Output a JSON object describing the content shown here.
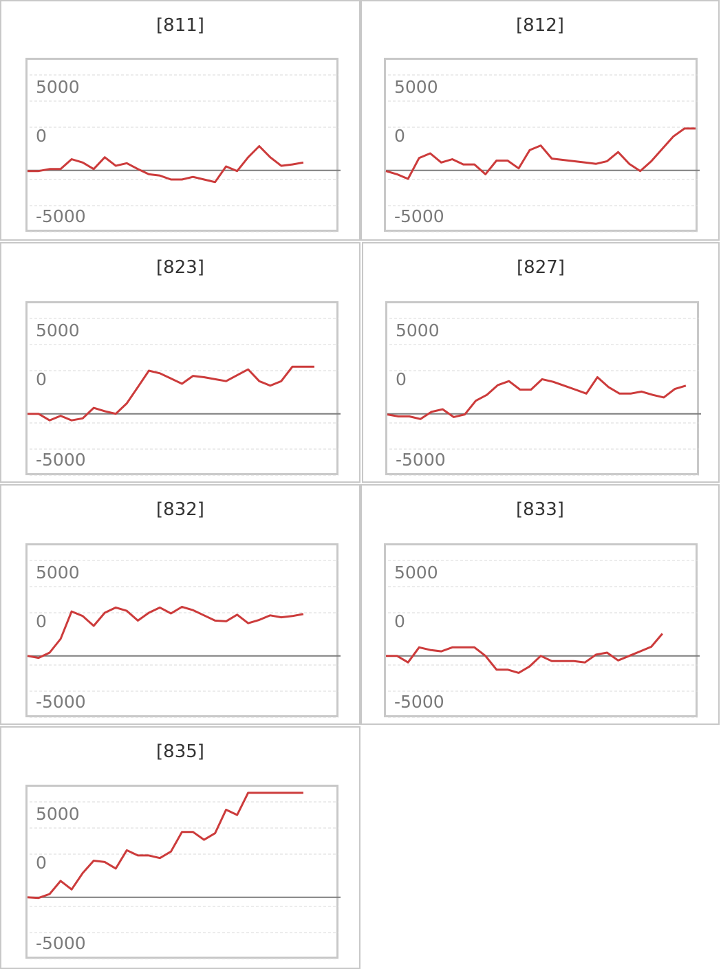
{
  "colors": {
    "line": "#cc3b3b",
    "zero_line": "#7d7d7d",
    "grid": "#d9d9d9",
    "frame": "#c8c8c8"
  },
  "chart_data": [
    {
      "type": "line",
      "title": "[811]",
      "ylim": [
        -6000,
        7000
      ],
      "y_ticks": [
        5000,
        0,
        -5000
      ],
      "grid": true,
      "series": [
        {
          "values": [
            -50,
            -50,
            100,
            100,
            850,
            600,
            100,
            1000,
            350,
            550,
            100,
            -300,
            -400,
            -700,
            -700,
            -500,
            -700,
            -900,
            300,
            -50,
            1000,
            1850,
            1000,
            350,
            450,
            600
          ]
        }
      ]
    },
    {
      "type": "line",
      "title": "[812]",
      "ylim": [
        -6000,
        7000
      ],
      "y_ticks": [
        5000,
        0,
        -5000
      ],
      "grid": true,
      "series": [
        {
          "values": [
            -50,
            -300,
            -650,
            950,
            1300,
            600,
            850,
            450,
            450,
            -300,
            750,
            750,
            150,
            1550,
            1900,
            900,
            800,
            700,
            600,
            500,
            700,
            1400,
            500,
            -50,
            700,
            1650,
            2600,
            3200,
            3200
          ]
        }
      ]
    },
    {
      "type": "line",
      "title": "[823]",
      "ylim": [
        -6000,
        7000
      ],
      "y_ticks": [
        5000,
        0,
        -5000
      ],
      "grid": true,
      "series": [
        {
          "values": [
            0,
            0,
            -500,
            -150,
            -500,
            -350,
            450,
            200,
            0,
            800,
            2050,
            3300,
            3100,
            2700,
            2300,
            2900,
            2800,
            2650,
            2500,
            2950,
            3400,
            2500,
            2150,
            2500,
            3600,
            3600,
            3600
          ]
        }
      ]
    },
    {
      "type": "line",
      "title": "[827]",
      "ylim": [
        -6000,
        7000
      ],
      "y_ticks": [
        5000,
        0,
        -5000
      ],
      "grid": true,
      "series": [
        {
          "values": [
            -50,
            -200,
            -200,
            -400,
            150,
            350,
            -250,
            -50,
            1000,
            1450,
            2200,
            2500,
            1850,
            1850,
            2650,
            2450,
            2150,
            1850,
            1550,
            2800,
            2050,
            1550,
            1550,
            1700,
            1450,
            1250,
            1900,
            2150
          ]
        }
      ]
    },
    {
      "type": "line",
      "title": "[832]",
      "ylim": [
        -6000,
        7000
      ],
      "y_ticks": [
        5000,
        0,
        -5000
      ],
      "grid": true,
      "series": [
        {
          "values": [
            0,
            -150,
            250,
            1300,
            3400,
            3050,
            2300,
            3300,
            3700,
            3450,
            2700,
            3300,
            3700,
            3250,
            3750,
            3500,
            3100,
            2700,
            2650,
            3150,
            2500,
            2750,
            3100,
            2950,
            3050,
            3200
          ]
        }
      ]
    },
    {
      "type": "line",
      "title": "[833]",
      "ylim": [
        -6000,
        7000
      ],
      "y_ticks": [
        5000,
        0,
        -5000
      ],
      "grid": true,
      "series": [
        {
          "values": [
            0,
            0,
            -500,
            650,
            450,
            350,
            650,
            650,
            650,
            0,
            -1050,
            -1050,
            -1300,
            -800,
            0,
            -400,
            -400,
            -400,
            -500,
            100,
            250,
            -350,
            0,
            350,
            700,
            1700
          ]
        }
      ]
    },
    {
      "type": "line",
      "title": "[835]",
      "ylim": [
        -6000,
        7000
      ],
      "y_ticks": [
        5000,
        0,
        -5000
      ],
      "grid": true,
      "series": [
        {
          "values": [
            0,
            -50,
            250,
            1250,
            600,
            1850,
            2800,
            2700,
            2200,
            3600,
            3200,
            3200,
            3000,
            3500,
            5000,
            5000,
            4400,
            4900,
            6700,
            6300,
            8000,
            8000,
            8000,
            8000,
            8000,
            8000
          ]
        }
      ]
    }
  ]
}
